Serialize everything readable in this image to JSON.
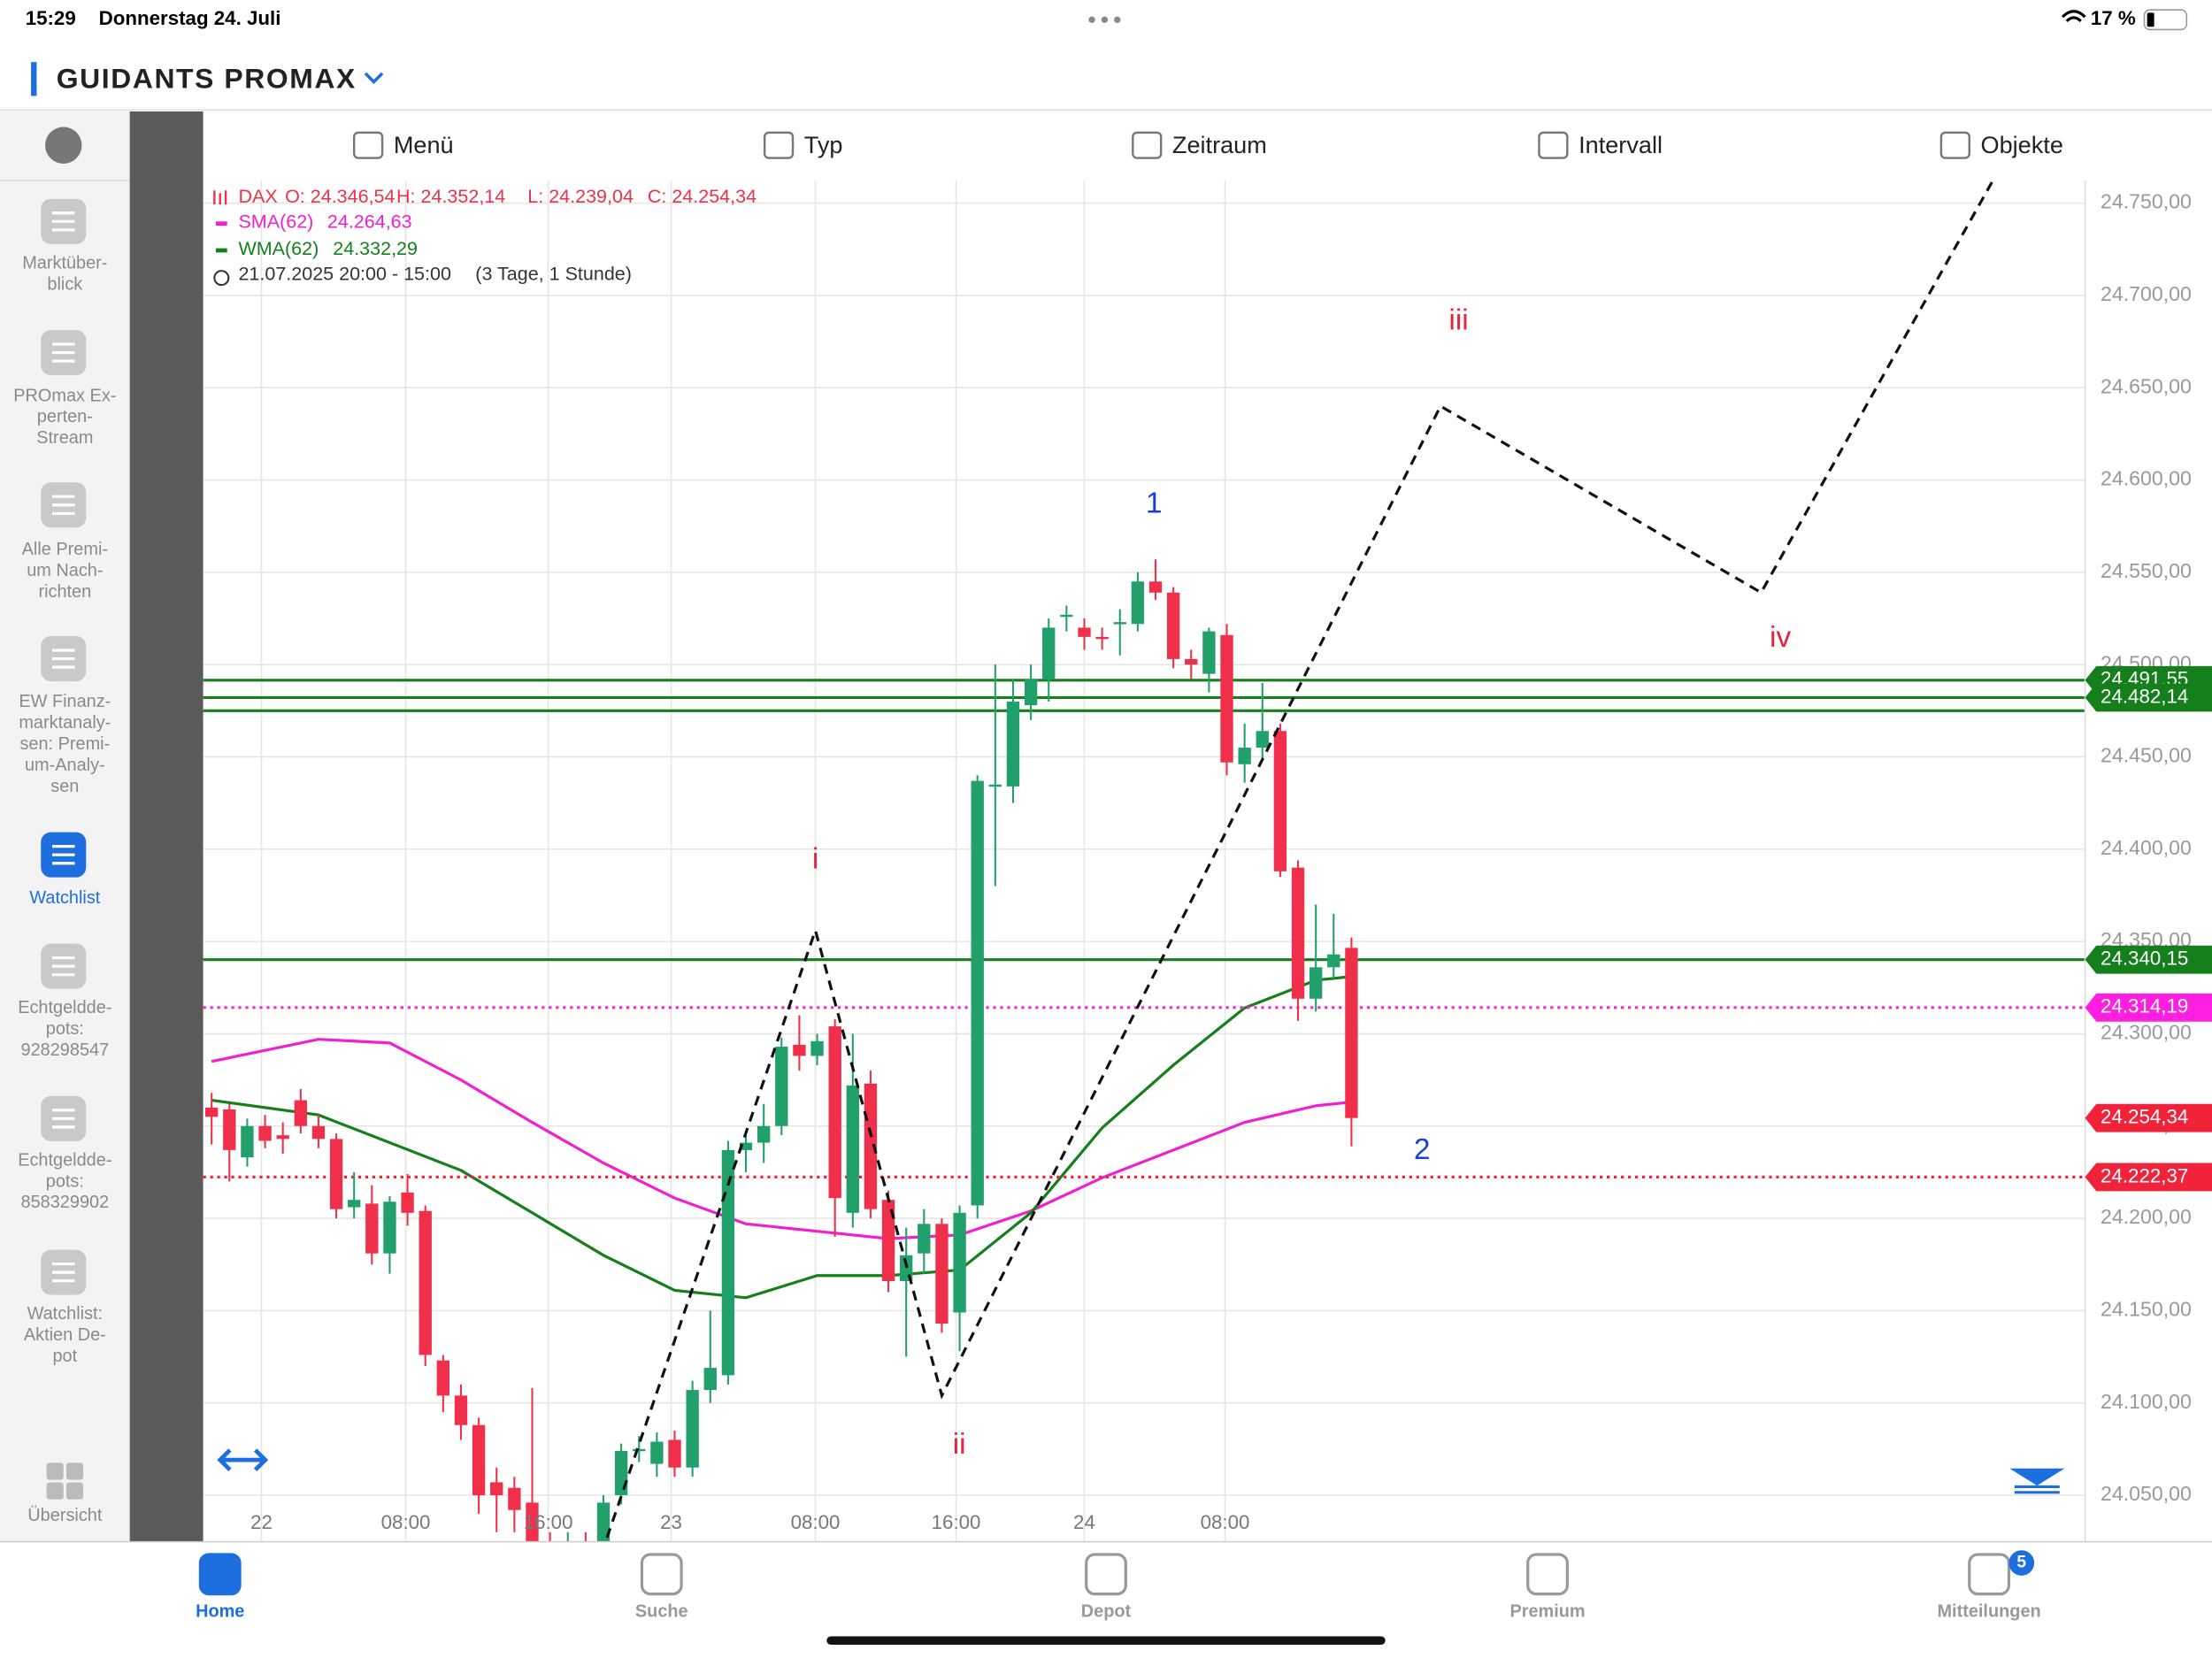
{
  "status": {
    "time": "15:29",
    "date": "Donnerstag 24. Juli",
    "battery": "17 %"
  },
  "header": {
    "title": "GUIDANTS PROMAX"
  },
  "toolbar": [
    "Menü",
    "Typ",
    "Zeitraum",
    "Intervall",
    "Objekte"
  ],
  "sidebar": {
    "active": 4,
    "items": [
      [
        "Marktüber-",
        "blick"
      ],
      [
        "PROmax Ex-",
        "perten-",
        "Stream"
      ],
      [
        "Alle Premi-",
        "um Nach-",
        "richten"
      ],
      [
        "EW Finanz-",
        "marktanaly-",
        "sen: Premi-",
        "um-Analy-",
        "sen"
      ],
      [
        "Watchlist"
      ],
      [
        "Echtgeldde-",
        "pots:",
        "928298547"
      ],
      [
        "Echtgeldde-",
        "pots:",
        "858329902"
      ],
      [
        "Watchlist:",
        "Aktien De-",
        "pot"
      ]
    ],
    "bottom": "Übersicht"
  },
  "tabs": {
    "items": [
      "Home",
      "Suche",
      "Depot",
      "Premium",
      "Mitteilungen"
    ],
    "active": 0,
    "badge": "5"
  },
  "chart_data": {
    "type": "candlestick",
    "legend": {
      "symbol": "DAX",
      "o": "O: 24.346,54",
      "h": "H: 24.352,14",
      "l": "L: 24.239,04",
      "c": "C: 24.254,34",
      "sma": "SMA(62)",
      "sma_value": "24.264,63",
      "wma": "WMA(62)",
      "wma_value": "24.332,29",
      "range": "21.07.2025 20:00 - 15:00",
      "period": "(3 Tage, 1 Stunde)"
    },
    "up_color": "#22a06b",
    "down_color": "#f0304a",
    "series": {
      "name": "DAX",
      "open": [
        24260,
        24259,
        24233,
        24250,
        24245,
        24264,
        24250,
        24243,
        24206,
        24208,
        24181,
        24214,
        24204,
        24123,
        24104,
        24088,
        24057,
        24054,
        24046,
        24024,
        24022,
        24025,
        24023,
        24050,
        24074,
        24067,
        24080,
        24065,
        24107,
        24115,
        24237,
        24241,
        24250,
        24294,
        24288,
        24304,
        24203,
        24273,
        24210,
        24166,
        24181,
        24197,
        24149,
        24207,
        24434,
        24434,
        24478,
        24492,
        24527,
        24520,
        24515,
        24522,
        24522,
        24545,
        24539,
        24503,
        24495,
        24516,
        24446,
        24455,
        24464,
        24390,
        24319,
        24336,
        24346.54
      ],
      "high": [
        24268,
        24262,
        24254,
        24256,
        24252,
        24270,
        24256,
        24246,
        24225,
        24218,
        24212,
        24224,
        24207,
        24126,
        24110,
        24092,
        24065,
        24060,
        24108,
        24030,
        24030,
        24030,
        24050,
        24078,
        24082,
        24084,
        24085,
        24112,
        24150,
        24242,
        24245,
        24262,
        24298,
        24310,
        24300,
        24308,
        24300,
        24280,
        24215,
        24195,
        24205,
        24200,
        24207,
        24440,
        24500,
        24492,
        24500,
        24525,
        24532,
        24525,
        24520,
        24530,
        24550,
        24557,
        24542,
        24508,
        24520,
        24522,
        24468,
        24490,
        24468,
        24394,
        24370,
        24365,
        24352.14
      ],
      "low": [
        24240,
        24220,
        24228,
        24238,
        24235,
        24246,
        24238,
        24200,
        24200,
        24175,
        24170,
        24196,
        24120,
        24095,
        24080,
        24040,
        24030,
        24030,
        24015,
        24015,
        24018,
        24018,
        24020,
        24045,
        24068,
        24060,
        24060,
        24060,
        24100,
        24110,
        24225,
        24230,
        24245,
        24280,
        24283,
        24190,
        24195,
        24200,
        24160,
        24125,
        24170,
        24138,
        24128,
        24200,
        24380,
        24425,
        24470,
        24480,
        24518,
        24508,
        24508,
        24505,
        24518,
        24535,
        24498,
        24492,
        24485,
        24440,
        24436,
        24448,
        24385,
        24307,
        24312,
        24330,
        24239.04
      ],
      "close": [
        24255,
        24237,
        24250,
        24242,
        24243,
        24250,
        24243,
        24205,
        24210,
        24181,
        24209,
        24203,
        24126,
        24104,
        24088,
        24050,
        24050,
        24042,
        24023,
        24022,
        24025,
        24023,
        24046,
        24074,
        24075,
        24079,
        24065,
        24107,
        24119,
        24237,
        24241,
        24250,
        24293,
        24288,
        24296,
        24211,
        24272,
        24205,
        24166,
        24180,
        24197,
        24143,
        24203,
        24437,
        24435,
        24480,
        24492,
        24520,
        24527,
        24515,
        24514,
        24523,
        24545,
        24539,
        24503,
        24500,
        24518,
        24447,
        24455,
        24464,
        24388,
        24319,
        24336,
        24343,
        24254.34
      ]
    },
    "lines": [
      {
        "name": "SMA(62)",
        "color": "#f020d0",
        "x": [
          0,
          6,
          10,
          14,
          18,
          22,
          26,
          30,
          34,
          38,
          42,
          46,
          50,
          54,
          58,
          62,
          64
        ],
        "values": [
          24285,
          24297,
          24295,
          24275,
          24252,
          24230,
          24211,
          24197,
          24193,
          24189,
          24191,
          24204,
          24222,
          24237,
          24252,
          24261,
          24263
        ]
      },
      {
        "name": "WMA(62)",
        "color": "#15801b",
        "x": [
          0,
          6,
          10,
          14,
          18,
          22,
          26,
          30,
          34,
          38,
          42,
          46,
          50,
          54,
          58,
          62,
          64
        ],
        "values": [
          24264,
          24256,
          24241,
          24226,
          24203,
          24180,
          24161,
          24157,
          24169,
          24169,
          24172,
          24203,
          24249,
          24283,
          24314,
          24329,
          24331
        ]
      }
    ],
    "projection": {
      "x": [
        22.2,
        33.9,
        41,
        69,
        87,
        100
      ],
      "values": [
        24027,
        24356,
        24104,
        24640,
        24539,
        24762
      ]
    },
    "annotations": [
      {
        "text": "i",
        "color": "#e8233c"
      },
      {
        "text": "ii",
        "color": "#e8233c"
      },
      {
        "text": "iii",
        "color": "#e8233c"
      },
      {
        "text": "iv",
        "color": "#e8233c"
      },
      {
        "text": "1",
        "color": "#1a3fd6"
      },
      {
        "text": "2",
        "color": "#1a3fd6"
      }
    ],
    "levels": [
      {
        "value": 24491.55,
        "label": "24.491,55",
        "color": "#15801b",
        "style": "solid"
      },
      {
        "value": 24482.14,
        "label": "24.482,14",
        "color": "#15801b",
        "style": "solid"
      },
      {
        "value": 24475,
        "color": "#15801b",
        "style": "solid"
      },
      {
        "value": 24340.15,
        "label": "24.340,15",
        "color": "#15801b",
        "style": "solid"
      },
      {
        "value": 24314.19,
        "label": "24.314,19",
        "color": "#ff1fe0",
        "style": "dotted"
      },
      {
        "value": 24254.34,
        "label": "24.254,34",
        "color": "#f0233a",
        "style": "none"
      },
      {
        "value": 24222.37,
        "label": "24.222,37",
        "color": "#f0233a",
        "style": "dotted"
      }
    ],
    "xticks": [
      "22",
      "08:00",
      "16:00",
      "23",
      "08:00",
      "16:00",
      "24",
      "08:00"
    ],
    "ylim": [
      24750,
      24050
    ],
    "yticks": [
      {
        "value": 24750,
        "label": "24.750,00"
      },
      {
        "value": 24700,
        "label": "24.700,00"
      },
      {
        "value": 24650,
        "label": "24.650,00"
      },
      {
        "value": 24600,
        "label": "24.600,00"
      },
      {
        "value": 24550,
        "label": "24.550,00"
      },
      {
        "value": 24500,
        "label": "24.500,00"
      },
      {
        "value": 24450,
        "label": "24.450,00"
      },
      {
        "value": 24400,
        "label": "24.400,00"
      },
      {
        "value": 24350,
        "label": "24.350,00"
      },
      {
        "value": 24300,
        "label": "24.300,00"
      },
      {
        "value": 24250,
        "label": "24.250,00"
      },
      {
        "value": 24200,
        "label": "24.200,00"
      },
      {
        "value": 24150,
        "label": "24.150,00"
      },
      {
        "value": 24100,
        "label": "24.100,00"
      },
      {
        "value": 24050,
        "label": "24.050,00"
      }
    ],
    "grid": true
  }
}
